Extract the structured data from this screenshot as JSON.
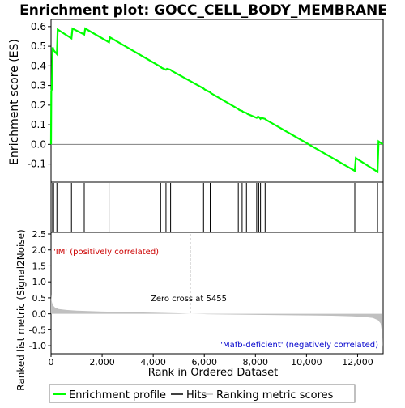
{
  "title": "Enrichment plot: GOCC_CELL_BODY_MEMBRANE",
  "colors": {
    "es_line": "#00ff00",
    "hit": "#000000",
    "metric_fill": "#c0c0c0",
    "positive_band": "#ff0000",
    "negative_band": "#0000ff",
    "zero_cross_line": "#c0c0c0"
  },
  "chart_data": [
    {
      "type": "line",
      "panel": "enrichment",
      "ylabel": "Enrichment score (ES)",
      "xlim": [
        0,
        13000
      ],
      "ylim": [
        -0.18,
        0.62
      ],
      "yticks": [
        -0.1,
        0.0,
        0.1,
        0.2,
        0.3,
        0.4,
        0.5,
        0.6
      ],
      "ytick_labels": [
        "-0.1",
        "0.0",
        "0.1",
        "0.2",
        "0.3",
        "0.4",
        "0.5",
        "0.6"
      ],
      "series": [
        {
          "x": [
            0,
            10,
            30,
            60,
            80,
            100,
            230,
            260,
            800,
            840,
            1300,
            1340,
            2270,
            2310,
            4290,
            4330,
            4500,
            4540,
            4680,
            4720,
            5970,
            6010,
            6230,
            6270,
            7330,
            7370,
            7480,
            7520,
            7650,
            7690,
            8050,
            8090,
            8130,
            8170,
            8200,
            8240,
            8380,
            8420,
            11890,
            11930,
            12780,
            12820,
            12990
          ],
          "y": [
            0.0,
            0.27,
            0.28,
            0.49,
            0.49,
            0.48,
            0.46,
            0.585,
            0.54,
            0.59,
            0.56,
            0.59,
            0.52,
            0.545,
            0.395,
            0.39,
            0.38,
            0.385,
            0.38,
            0.375,
            0.285,
            0.28,
            0.265,
            0.26,
            0.18,
            0.175,
            0.17,
            0.165,
            0.16,
            0.155,
            0.135,
            0.14,
            0.14,
            0.135,
            0.13,
            0.135,
            0.13,
            0.125,
            -0.135,
            -0.07,
            -0.14,
            0.015,
            0.0
          ]
        }
      ]
    },
    {
      "type": "scatter",
      "panel": "hits",
      "xlim": [
        0,
        13000
      ],
      "x": [
        60,
        100,
        230,
        800,
        1300,
        2270,
        4290,
        4500,
        4680,
        5970,
        6230,
        7330,
        7480,
        7650,
        8050,
        8130,
        8200,
        8380,
        11890,
        12780
      ]
    },
    {
      "type": "heatmap",
      "panel": "rank-color-bar",
      "xlim": [
        0,
        13000
      ],
      "segments": [
        {
          "x": [
            0,
            2100
          ],
          "color": "#ff5a5a"
        },
        {
          "x": [
            2100,
            2900
          ],
          "color": "#ff7a7a"
        },
        {
          "x": [
            2900,
            4050
          ],
          "color": "#ffa0b8"
        },
        {
          "x": [
            4050,
            6700
          ],
          "color": "#ffc8e6"
        },
        {
          "x": [
            6700,
            9200
          ],
          "color": "#e4e0f8"
        },
        {
          "x": [
            9200,
            10200
          ],
          "color": "#c8c4f4"
        },
        {
          "x": [
            10200,
            10950
          ],
          "color": "#a098f0"
        },
        {
          "x": [
            10950,
            12700
          ],
          "color": "#6858ee"
        },
        {
          "x": [
            12700,
            13000
          ],
          "color": "#2000cc"
        }
      ]
    },
    {
      "type": "area",
      "panel": "ranked-metric",
      "xlabel": "Rank in Ordered Dataset",
      "ylabel": "Ranked list metric (Signal2Noise)",
      "xlim": [
        0,
        13000
      ],
      "ylim": [
        -1.2,
        2.5
      ],
      "xticks": [
        0,
        2000,
        4000,
        6000,
        8000,
        10000,
        12000
      ],
      "xtick_labels": [
        "0",
        "2,000",
        "4,000",
        "6,000",
        "8,000",
        "10,000",
        "12,000"
      ],
      "yticks": [
        -1.0,
        -0.5,
        0.0,
        0.5,
        1.0,
        1.5,
        2.0,
        2.5
      ],
      "ytick_labels": [
        "-1.0",
        "-0.5",
        "0.0",
        "0.5",
        "1.0",
        "1.5",
        "2.0",
        "2.5"
      ],
      "x": [
        0,
        15,
        40,
        80,
        150,
        300,
        600,
        1000,
        2000,
        3000,
        4000,
        5000,
        5455,
        6000,
        7000,
        8000,
        9000,
        10000,
        11000,
        11800,
        12300,
        12600,
        12800,
        12900,
        12960,
        12990
      ],
      "y": [
        0.62,
        0.45,
        0.35,
        0.26,
        0.2,
        0.15,
        0.12,
        0.1,
        0.07,
        0.05,
        0.035,
        0.015,
        0.0,
        -0.01,
        -0.02,
        -0.03,
        -0.04,
        -0.05,
        -0.06,
        -0.08,
        -0.1,
        -0.13,
        -0.2,
        -0.3,
        -0.6,
        -1.05
      ],
      "annotations": {
        "zero_cross": "Zero cross at 5455",
        "positive": "'IM' (positively correlated)",
        "negative": "'Mafb-deficient' (negatively correlated)"
      },
      "zero_cross_x": 5455
    }
  ],
  "legend": {
    "items": [
      {
        "label": "Enrichment profile",
        "color": "#00ff00"
      },
      {
        "label": "Hits",
        "color": "#000000"
      },
      {
        "label": "Ranking metric scores",
        "color": "#c0c0c0"
      }
    ]
  }
}
